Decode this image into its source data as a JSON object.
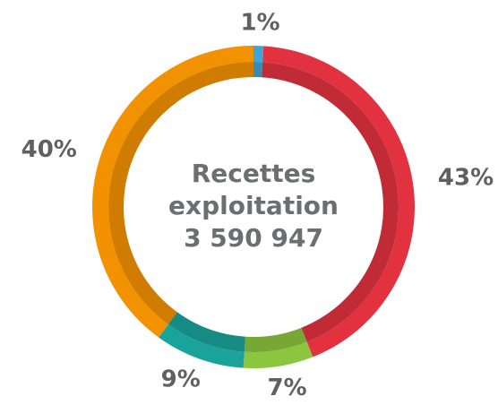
{
  "chart_data": {
    "type": "donut",
    "center_text": [
      "Recettes",
      "exploitation",
      "3 590 947"
    ],
    "categories": [
      null,
      null,
      null,
      null,
      null
    ],
    "values": [
      1,
      43,
      7,
      9,
      40
    ],
    "value_labels": [
      "1%",
      "43%",
      "7%",
      "9%",
      "40%"
    ],
    "colors": [
      "#3ea6d6",
      "#e3323f",
      "#8cc63f",
      "#1aa39b",
      "#f39200"
    ]
  }
}
